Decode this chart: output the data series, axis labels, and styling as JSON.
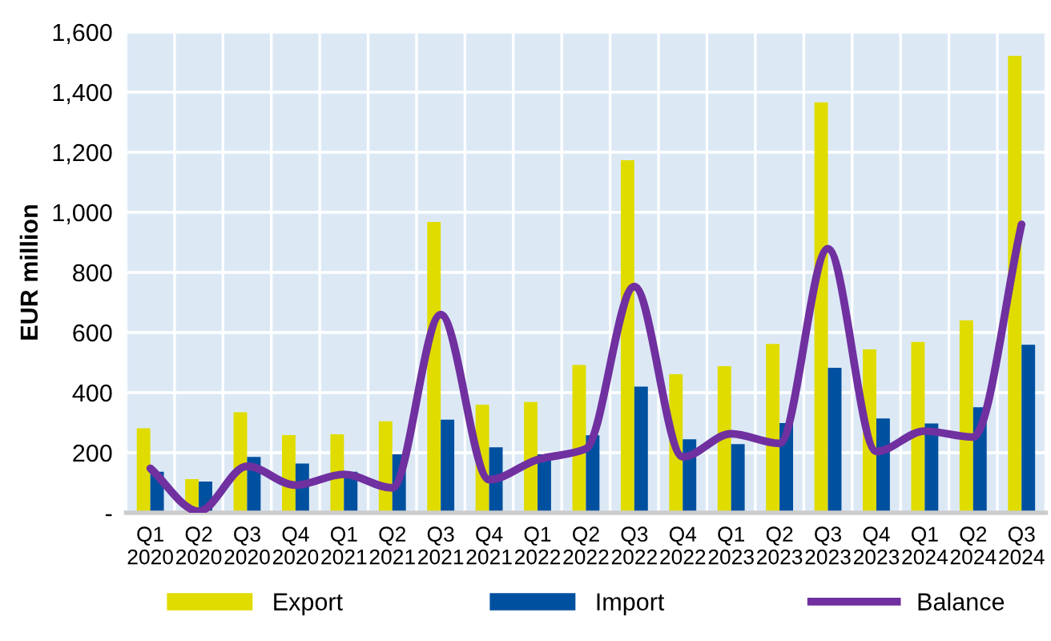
{
  "chart_data": {
    "type": "bar",
    "ylabel": "EUR million",
    "categories": [
      "Q1\n2020",
      "Q2\n2020",
      "Q3\n2020",
      "Q4\n2020",
      "Q1\n2021",
      "Q2\n2021",
      "Q3\n2021",
      "Q4\n2021",
      "Q1\n2022",
      "Q2\n2022",
      "Q3\n2022",
      "Q4\n2022",
      "Q1\n2023",
      "Q2\n2023",
      "Q3\n2023",
      "Q4\n2023",
      "Q1\n2024",
      "Q2\n2024",
      "Q3\n2024"
    ],
    "series": [
      {
        "name": "Export",
        "color": "#e0dc00",
        "values": [
          281,
          112,
          335,
          259,
          261,
          305,
          968,
          360,
          369,
          492,
          1173,
          461,
          488,
          562,
          1366,
          544,
          569,
          641,
          1521
        ]
      },
      {
        "name": "Import",
        "color": "#0050a0",
        "values": [
          137,
          104,
          186,
          164,
          137,
          195,
          310,
          218,
          195,
          258,
          420,
          245,
          229,
          299,
          483,
          314,
          297,
          351,
          559
        ]
      },
      {
        "name": "Balance",
        "type": "line",
        "color": "#7030a0",
        "values": [
          148,
          5,
          155,
          92,
          128,
          83,
          660,
          110,
          177,
          213,
          753,
          186,
          263,
          231,
          879,
          204,
          272,
          252,
          960
        ]
      }
    ],
    "ylim": [
      0,
      1600
    ],
    "yticks": [
      {
        "value": 0,
        "label": "-"
      },
      {
        "value": 200,
        "label": "200"
      },
      {
        "value": 400,
        "label": "400"
      },
      {
        "value": 600,
        "label": "600"
      },
      {
        "value": 800,
        "label": "800"
      },
      {
        "value": 1000,
        "label": "1,000"
      },
      {
        "value": 1200,
        "label": "1,200"
      },
      {
        "value": 1400,
        "label": "1,400"
      },
      {
        "value": 1600,
        "label": "1,600"
      }
    ],
    "grid": true,
    "legend": "bottom",
    "marker": "none",
    "line_style": "solid"
  }
}
